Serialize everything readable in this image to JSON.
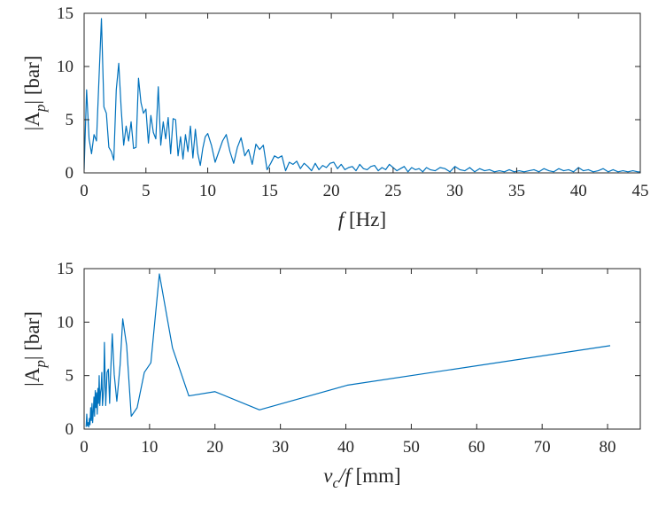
{
  "colors": {
    "series": "#0072BD",
    "axes": "#262626",
    "background": "#ffffff"
  },
  "chart_data": [
    {
      "type": "line",
      "xlabel": {
        "main": "f",
        "unit": " [Hz]"
      },
      "ylabel": {
        "prefix": "|A",
        "sub": "p",
        "suffix": "| [bar]"
      },
      "xlim": [
        0,
        45
      ],
      "ylim": [
        0,
        15
      ],
      "xticks": [
        "0",
        "5",
        "10",
        "15",
        "20",
        "25",
        "30",
        "35",
        "40",
        "45"
      ],
      "yticks": [
        "0",
        "5",
        "10",
        "15"
      ],
      "grid": false,
      "series": [
        {
          "x": [
            0.0,
            0.2,
            0.4,
            0.6,
            0.8,
            1.0,
            1.2,
            1.4,
            1.6,
            1.8,
            2.0,
            2.2,
            2.4,
            2.6,
            2.8,
            3.0,
            3.2,
            3.4,
            3.6,
            3.8,
            4.0,
            4.2,
            4.4,
            4.6,
            4.8,
            5.0,
            5.2,
            5.4,
            5.6,
            5.8,
            6.0,
            6.2,
            6.4,
            6.6,
            6.8,
            7.0,
            7.2,
            7.4,
            7.6,
            7.8,
            8.0,
            8.2,
            8.4,
            8.6,
            8.8,
            9.0,
            9.2,
            9.4,
            9.6,
            9.8,
            10.0,
            10.3,
            10.6,
            10.9,
            11.2,
            11.5,
            11.8,
            12.1,
            12.4,
            12.7,
            13.0,
            13.3,
            13.6,
            13.9,
            14.2,
            14.5,
            14.8,
            15.1,
            15.4,
            15.7,
            16.0,
            16.3,
            16.6,
            16.9,
            17.2,
            17.5,
            17.8,
            18.1,
            18.4,
            18.7,
            19.0,
            19.3,
            19.6,
            19.9,
            20.2,
            20.5,
            20.8,
            21.1,
            21.4,
            21.7,
            22.0,
            22.3,
            22.6,
            22.9,
            23.2,
            23.5,
            23.8,
            24.1,
            24.4,
            24.7,
            25.0,
            25.3,
            25.6,
            25.9,
            26.2,
            26.5,
            26.8,
            27.1,
            27.4,
            27.7,
            28.0,
            28.4,
            28.8,
            29.2,
            29.6,
            30.0,
            30.4,
            30.8,
            31.2,
            31.6,
            32.0,
            32.4,
            32.8,
            33.2,
            33.6,
            34.0,
            34.4,
            34.8,
            35.2,
            35.6,
            36.0,
            36.4,
            36.8,
            37.2,
            37.6,
            38.0,
            38.4,
            38.8,
            39.2,
            39.6,
            40.0,
            40.4,
            40.8,
            41.2,
            41.6,
            42.0,
            42.4,
            42.8,
            43.2,
            43.6,
            44.0,
            44.4,
            44.8,
            45.0
          ],
          "y": [
            0.3,
            7.8,
            3.2,
            1.8,
            3.6,
            3.0,
            8.8,
            14.5,
            6.2,
            5.6,
            2.4,
            2.0,
            1.2,
            7.8,
            10.3,
            6.0,
            2.6,
            4.4,
            3.0,
            4.8,
            2.3,
            2.4,
            8.9,
            6.6,
            5.6,
            6.0,
            2.8,
            5.4,
            3.8,
            3.2,
            8.1,
            2.6,
            4.8,
            3.2,
            5.2,
            1.8,
            5.1,
            5.0,
            1.6,
            3.4,
            1.3,
            3.6,
            2.0,
            4.4,
            1.4,
            4.1,
            1.8,
            0.7,
            2.3,
            3.4,
            3.7,
            2.6,
            1.0,
            2.0,
            3.0,
            3.6,
            2.0,
            0.9,
            2.4,
            3.3,
            1.6,
            2.2,
            0.8,
            2.7,
            2.2,
            2.6,
            0.3,
            0.9,
            1.6,
            1.4,
            1.6,
            0.2,
            1.0,
            0.8,
            1.1,
            0.4,
            0.9,
            0.6,
            0.2,
            0.9,
            0.3,
            0.7,
            0.5,
            0.9,
            1.0,
            0.4,
            0.8,
            0.3,
            0.5,
            0.6,
            0.2,
            0.8,
            0.4,
            0.3,
            0.6,
            0.7,
            0.2,
            0.5,
            0.3,
            0.8,
            0.5,
            0.2,
            0.4,
            0.6,
            0.1,
            0.5,
            0.3,
            0.4,
            0.1,
            0.5,
            0.3,
            0.2,
            0.5,
            0.4,
            0.1,
            0.6,
            0.3,
            0.2,
            0.5,
            0.1,
            0.4,
            0.2,
            0.3,
            0.1,
            0.2,
            0.1,
            0.3,
            0.1,
            0.2,
            0.1,
            0.2,
            0.3,
            0.1,
            0.4,
            0.2,
            0.1,
            0.4,
            0.2,
            0.3,
            0.1,
            0.5,
            0.2,
            0.3,
            0.1,
            0.2,
            0.4,
            0.1,
            0.3,
            0.1,
            0.2,
            0.1,
            0.2,
            0.1,
            0.1
          ]
        }
      ]
    },
    {
      "type": "line",
      "xlabel": {
        "main": "v",
        "sub": "c",
        "rest": "/f",
        "unit": " [mm]"
      },
      "ylabel": {
        "prefix": "|A",
        "sub": "p",
        "suffix": "| [bar]"
      },
      "xlim": [
        0,
        85
      ],
      "ylim": [
        0,
        15
      ],
      "xticks": [
        "0",
        "10",
        "20",
        "30",
        "40",
        "50",
        "60",
        "70",
        "80"
      ],
      "yticks": [
        "0",
        "5",
        "10",
        "15"
      ],
      "grid": false,
      "series": [
        {
          "x": [
            0.3,
            0.4,
            0.5,
            0.6,
            0.7,
            0.8,
            0.9,
            1.0,
            1.1,
            1.2,
            1.3,
            1.4,
            1.5,
            1.6,
            1.7,
            1.8,
            1.9,
            2.0,
            2.1,
            2.2,
            2.3,
            2.4,
            2.5,
            2.6,
            2.7,
            2.8,
            2.9,
            3.0,
            3.1,
            3.3,
            3.5,
            3.7,
            3.9,
            4.0,
            4.3,
            4.6,
            5.0,
            5.5,
            5.9,
            6.5,
            7.2,
            8.1,
            9.2,
            10.2,
            11.5,
            13.5,
            16.0,
            20.0,
            26.8,
            40.2,
            80.4
          ],
          "y": [
            0.2,
            1.4,
            0.3,
            0.6,
            0.2,
            1.0,
            0.4,
            2.0,
            0.8,
            2.4,
            0.6,
            1.6,
            3.0,
            1.2,
            3.6,
            2.0,
            3.4,
            1.4,
            3.8,
            2.4,
            5.0,
            2.2,
            3.4,
            3.8,
            5.3,
            2.2,
            3.0,
            4.0,
            8.1,
            2.2,
            5.3,
            5.6,
            2.4,
            4.5,
            8.9,
            5.1,
            2.6,
            6.0,
            10.3,
            7.8,
            1.2,
            2.0,
            5.3,
            6.2,
            14.5,
            7.6,
            3.1,
            3.5,
            1.8,
            4.1,
            7.8
          ]
        }
      ]
    }
  ]
}
